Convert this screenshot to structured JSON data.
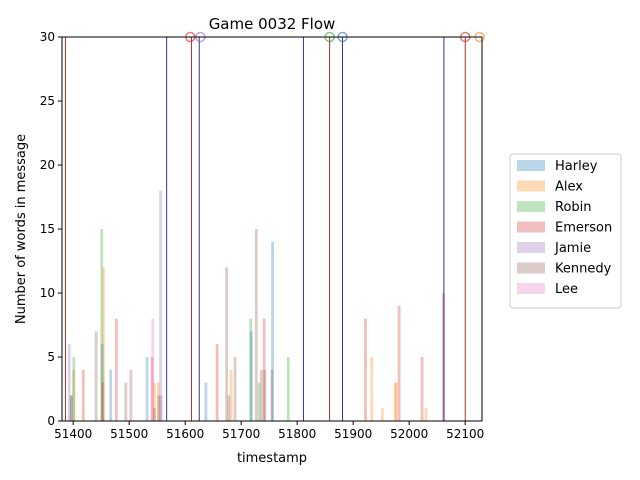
{
  "chart_data": {
    "type": "bar",
    "title": "Game 0032 Flow",
    "xlabel": "timestamp",
    "ylabel": "Number of words in message",
    "xlim": [
      51380,
      52130
    ],
    "ylim": [
      0,
      30
    ],
    "x_ticks": [
      51400,
      51500,
      51600,
      51700,
      51800,
      51900,
      52000,
      52100
    ],
    "y_ticks": [
      0,
      5,
      10,
      15,
      20,
      25,
      30
    ],
    "legend_position": "right",
    "series": [
      {
        "name": "Harley",
        "color": "#1f77b4",
        "bars": [
          [
            51396,
            2
          ],
          [
            51452,
            6
          ],
          [
            51467,
            4
          ],
          [
            51532,
            5
          ],
          [
            51637,
            3
          ],
          [
            51718,
            7
          ],
          [
            51756,
            14
          ]
        ]
      },
      {
        "name": "Alex",
        "color": "#ff7f0e",
        "bars": [
          [
            51401,
            4
          ],
          [
            51454,
            12
          ],
          [
            51545,
            3
          ],
          [
            51552,
            3
          ],
          [
            51682,
            4
          ],
          [
            51933,
            5
          ],
          [
            51952,
            1
          ],
          [
            51975,
            3
          ],
          [
            51977,
            3
          ],
          [
            52030,
            1
          ]
        ]
      },
      {
        "name": "Robin",
        "color": "#2ca02c",
        "bars": [
          [
            51401,
            5
          ],
          [
            51451,
            15
          ],
          [
            51717,
            8
          ],
          [
            51784,
            5
          ],
          [
            51732,
            3
          ]
        ]
      },
      {
        "name": "Emerson",
        "color": "#d62728",
        "bars": [
          [
            51418,
            4
          ],
          [
            51453,
            3
          ],
          [
            51477,
            8
          ],
          [
            51541,
            5
          ],
          [
            51657,
            6
          ],
          [
            51741,
            8
          ],
          [
            51922,
            8
          ],
          [
            51982,
            9
          ],
          [
            52023,
            5
          ],
          [
            52061,
            10
          ]
        ]
      },
      {
        "name": "Jamie",
        "color": "#9467bd",
        "bars": [
          [
            51393,
            6
          ],
          [
            51556,
            18
          ],
          [
            51557,
            2
          ]
        ]
      },
      {
        "name": "Kennedy",
        "color": "#8c564b",
        "bars": [
          [
            51397,
            2
          ],
          [
            51441,
            7
          ],
          [
            51503,
            4
          ],
          [
            51494,
            3
          ],
          [
            51545,
            1
          ],
          [
            51553,
            2
          ],
          [
            51674,
            12
          ],
          [
            51678,
            2
          ],
          [
            51689,
            5
          ],
          [
            51727,
            15
          ],
          [
            51736,
            4
          ],
          [
            51742,
            4
          ],
          [
            51755,
            4
          ]
        ]
      },
      {
        "name": "Lee",
        "color": "#e377c2",
        "bars": [
          [
            51542,
            8
          ]
        ]
      }
    ],
    "vlines": [
      {
        "x": 51386,
        "color": "#8b0000"
      },
      {
        "x": 51567,
        "color": "#00008b"
      },
      {
        "x": 51611,
        "color": "#8b0000"
      },
      {
        "x": 51625,
        "color": "#00008b"
      },
      {
        "x": 51811,
        "color": "#00008b"
      },
      {
        "x": 51858,
        "color": "#8b0000"
      },
      {
        "x": 51881,
        "color": "#00008b"
      },
      {
        "x": 52062,
        "color": "#00008b"
      },
      {
        "x": 52100,
        "color": "#8b0000"
      }
    ],
    "top_markers": [
      {
        "x": 51609,
        "color": "#d62728"
      },
      {
        "x": 51627,
        "color": "#9467bd"
      },
      {
        "x": 51858,
        "color": "#2ca02c"
      },
      {
        "x": 51881,
        "color": "#1f77b4"
      },
      {
        "x": 52100,
        "color": "#d62728"
      },
      {
        "x": 52126,
        "color": "#ff7f0e"
      }
    ]
  }
}
